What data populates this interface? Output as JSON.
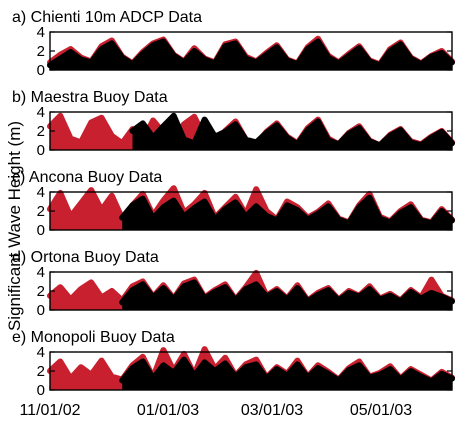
{
  "ylabel": "Significant Wave Height (m)",
  "x_ticks": [
    "11/01/02",
    "01/01/03",
    "03/01/03",
    "05/01/03"
  ],
  "colors": {
    "series_a": "#c8202e",
    "series_b": "#000000"
  },
  "chart_data": [
    {
      "type": "area",
      "title": "a) Chienti 10m ADCP Data",
      "ylim": [
        0,
        4
      ],
      "yticks": [
        "4",
        "2",
        "0"
      ],
      "x_range": [
        "11/01/02",
        "06/14/03"
      ],
      "series": [
        {
          "color": "#c8202e",
          "values": [
            0.8,
            1.6,
            2.2,
            1.3,
            0.9,
            2.5,
            3.1,
            1.4,
            0.7,
            1.9,
            2.8,
            3.2,
            1.6,
            0.9,
            2.3,
            1.2,
            0.8,
            2.7,
            3.0,
            1.4,
            0.9,
            1.8,
            2.6,
            1.1,
            0.7,
            2.4,
            3.3,
            1.5,
            0.8,
            1.7,
            2.5,
            1.0,
            0.6,
            2.2,
            2.9,
            1.3,
            0.7,
            1.5,
            2.0,
            0.9
          ]
        },
        {
          "color": "#000000",
          "values": [
            0.5,
            1.2,
            1.9,
            1.1,
            0.8,
            2.2,
            2.8,
            1.3,
            0.6,
            1.7,
            2.6,
            3.0,
            1.5,
            0.8,
            2.0,
            1.1,
            0.7,
            2.5,
            2.8,
            1.2,
            0.8,
            1.6,
            2.4,
            1.0,
            0.6,
            2.2,
            3.0,
            1.3,
            0.7,
            1.5,
            2.3,
            0.9,
            0.5,
            2.0,
            2.7,
            1.2,
            0.6,
            1.4,
            1.8,
            0.8
          ]
        }
      ]
    },
    {
      "type": "area",
      "title": "b) Maestra Buoy Data",
      "ylim": [
        0,
        4
      ],
      "yticks": [
        "4",
        "2",
        "0"
      ],
      "x_range": [
        "11/01/02",
        "06/14/03"
      ],
      "series": [
        {
          "color": "#c8202e",
          "values": [
            2.5,
            3.6,
            1.2,
            0.8,
            2.9,
            3.4,
            1.5,
            0.7,
            2.2,
            1.0,
            3.1,
            1.8,
            0.9,
            2.7,
            3.5,
            1.3,
            0.8,
            2.0,
            3.0,
            1.1,
            0.6,
            1.9,
            2.8,
            1.4,
            0.7,
            2.3,
            3.2,
            1.2,
            0.6,
            1.8,
            2.5,
            1.0,
            0.5,
            1.6,
            2.2,
            0.9,
            0.6,
            1.4,
            2.0,
            0.8
          ]
        },
        {
          "color": "#000000",
          "values": [
            0,
            0,
            0,
            0,
            0,
            0,
            0,
            0,
            2.0,
            2.8,
            1.3,
            2.5,
            3.6,
            1.1,
            0.7,
            3.2,
            1.4,
            1.9,
            2.7,
            1.1,
            0.8,
            1.8,
            2.6,
            1.3,
            0.6,
            2.1,
            3.0,
            1.0,
            0.6,
            1.7,
            2.3,
            0.9,
            0.5,
            1.5,
            2.1,
            0.8,
            0.5,
            1.3,
            1.9,
            0.7
          ]
        }
      ]
    },
    {
      "type": "area",
      "title": "c) Ancona Buoy Data",
      "ylim": [
        0,
        4
      ],
      "yticks": [
        "4",
        "2",
        "0"
      ],
      "x_range": [
        "11/01/02",
        "06/14/03"
      ],
      "series": [
        {
          "color": "#c8202e",
          "values": [
            2.2,
            3.9,
            1.4,
            2.8,
            4.2,
            2.1,
            3.6,
            1.2,
            2.6,
            3.8,
            1.5,
            3.1,
            4.4,
            1.8,
            2.7,
            3.9,
            1.3,
            2.4,
            3.5,
            1.6,
            4.3,
            2.0,
            1.1,
            3.0,
            2.4,
            1.3,
            1.9,
            2.8,
            1.2,
            0.8,
            2.6,
            3.8,
            1.4,
            0.9,
            2.0,
            2.7,
            1.1,
            0.8,
            2.2,
            1.1
          ]
        },
        {
          "color": "#000000",
          "values": [
            0,
            0,
            0,
            0,
            0,
            0,
            0,
            1.3,
            2.6,
            3.3,
            1.2,
            2.4,
            3.1,
            1.4,
            2.3,
            3.0,
            1.1,
            2.2,
            2.9,
            1.4,
            2.5,
            1.5,
            1.0,
            2.6,
            2.1,
            1.1,
            1.7,
            2.5,
            1.1,
            0.7,
            2.4,
            3.4,
            1.2,
            0.8,
            1.8,
            2.4,
            1.0,
            0.7,
            2.0,
            1.0
          ]
        }
      ]
    },
    {
      "type": "area",
      "title": "d) Ortona Buoy Data",
      "ylim": [
        0,
        4
      ],
      "yticks": [
        "4",
        "2",
        "0"
      ],
      "x_range": [
        "11/01/02",
        "06/14/03"
      ],
      "series": [
        {
          "color": "#c8202e",
          "values": [
            1.5,
            2.4,
            1.1,
            2.2,
            2.9,
            1.3,
            2.0,
            1.0,
            2.5,
            3.0,
            1.4,
            2.6,
            1.2,
            2.8,
            3.2,
            1.3,
            2.1,
            2.7,
            1.1,
            2.4,
            3.9,
            1.5,
            2.2,
            1.2,
            2.6,
            1.0,
            1.8,
            2.3,
            1.1,
            2.0,
            1.5,
            2.5,
            1.2,
            1.7,
            1.0,
            2.1,
            1.3,
            3.2,
            1.5,
            1.0
          ]
        },
        {
          "color": "#000000",
          "values": [
            0,
            0,
            0,
            0,
            0,
            0,
            0,
            0.8,
            2.1,
            2.7,
            1.3,
            2.3,
            1.1,
            2.5,
            2.9,
            1.2,
            1.9,
            2.4,
            1.0,
            2.2,
            2.7,
            1.4,
            2.0,
            1.1,
            2.3,
            0.9,
            1.6,
            2.1,
            1.0,
            1.8,
            1.4,
            2.2,
            1.1,
            1.5,
            0.9,
            1.9,
            1.2,
            1.8,
            1.4,
            0.9
          ]
        }
      ]
    },
    {
      "type": "area",
      "title": "e) Monopoli Buoy Data",
      "ylim": [
        0,
        4
      ],
      "yticks": [
        "4",
        "2",
        "0"
      ],
      "x_range": [
        "11/01/02",
        "06/14/03"
      ],
      "series": [
        {
          "color": "#c8202e",
          "values": [
            2.0,
            3.0,
            1.2,
            2.4,
            1.6,
            3.1,
            1.4,
            1.1,
            2.6,
            3.5,
            1.3,
            4.2,
            2.0,
            3.8,
            1.6,
            4.3,
            2.2,
            3.4,
            1.5,
            2.7,
            3.2,
            1.3,
            2.4,
            1.7,
            3.1,
            1.4,
            2.6,
            1.9,
            1.1,
            2.3,
            3.0,
            1.4,
            1.8,
            2.5,
            1.2,
            2.2,
            1.6,
            1.0,
            1.9,
            1.3
          ]
        },
        {
          "color": "#000000",
          "values": [
            0,
            0,
            0,
            0,
            0,
            0,
            0,
            1.0,
            2.3,
            3.0,
            1.2,
            2.6,
            1.8,
            3.2,
            1.5,
            2.9,
            2.0,
            2.8,
            1.4,
            2.4,
            2.7,
            1.2,
            2.2,
            1.5,
            2.7,
            1.3,
            2.3,
            1.7,
            1.0,
            2.1,
            2.6,
            1.3,
            1.6,
            2.2,
            1.1,
            2.0,
            1.4,
            0.9,
            1.7,
            1.2
          ]
        }
      ]
    }
  ]
}
